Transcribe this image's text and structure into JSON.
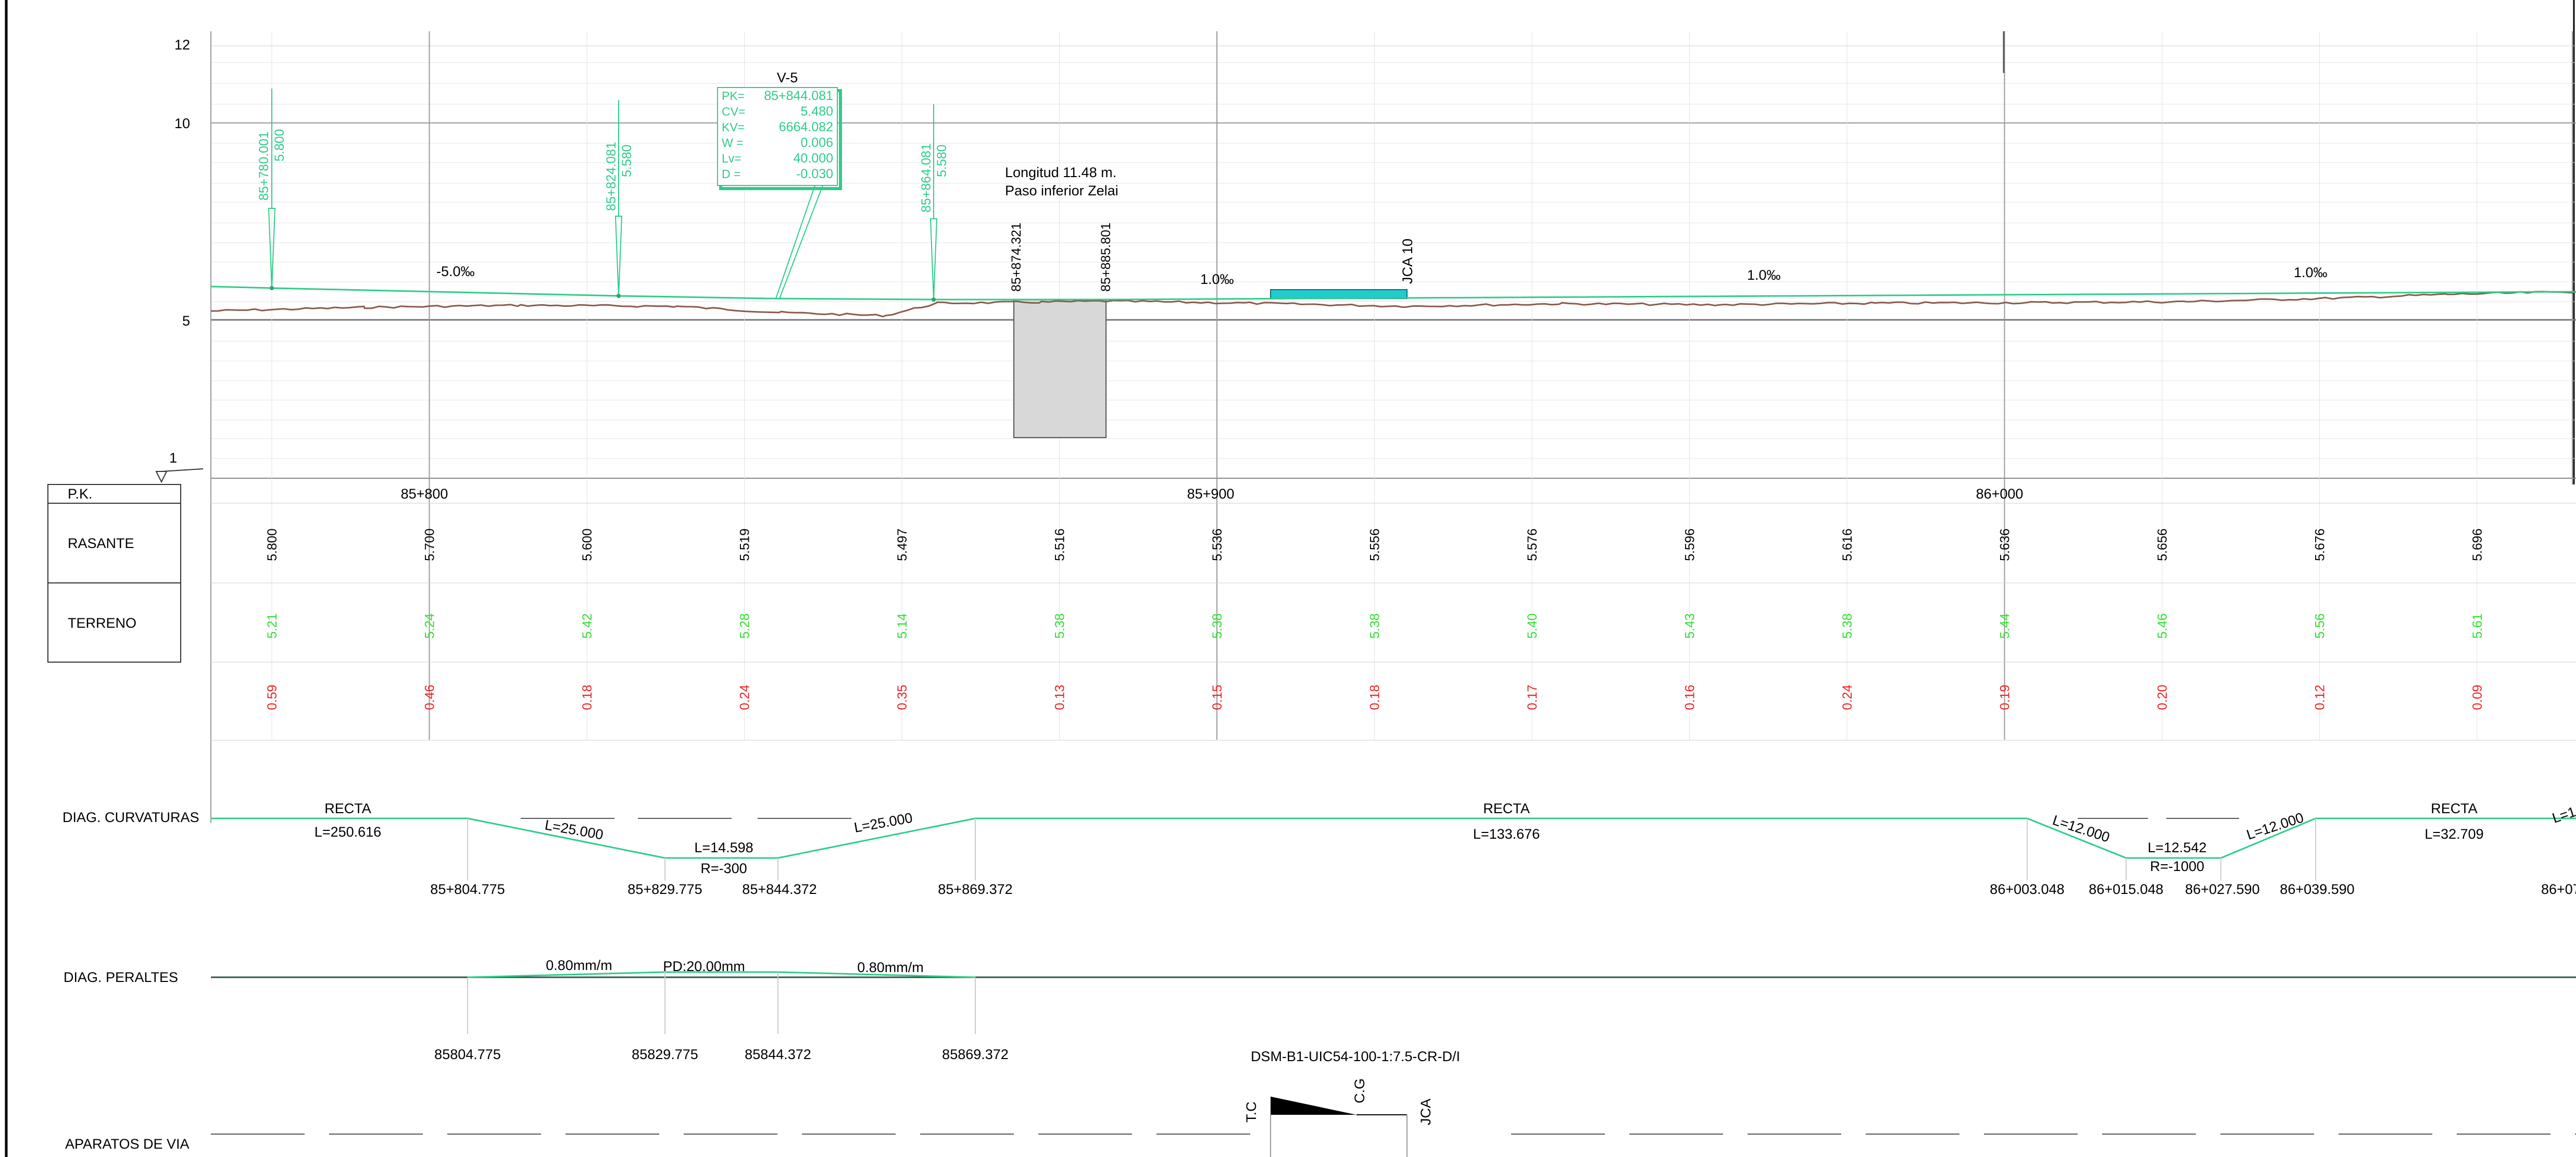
{
  "profile": {
    "y_axis_labels": [
      "12",
      "10",
      "5",
      "1"
    ],
    "kv_box": {
      "title": "V-5",
      "rows": [
        {
          "key": "PK=",
          "val": "85+844.081"
        },
        {
          "key": "CV=",
          "val": "5.480"
        },
        {
          "key": "KV=",
          "val": "6664.082"
        },
        {
          "key": "W =",
          "val": "0.006"
        },
        {
          "key": "Lv=",
          "val": "40.000"
        },
        {
          "key": "D =",
          "val": "-0.030"
        }
      ]
    },
    "markers": [
      {
        "pk": "85+780.001",
        "z": "5.800"
      },
      {
        "pk": "85+824.081",
        "z": "5.580"
      },
      {
        "pk": "85+864.081",
        "z": "5.580"
      }
    ],
    "structure": {
      "line1": "Longitud 11.48 m.",
      "line2": "Paso inferior Zelai",
      "pk_start": "85+874.321",
      "pk_end": "85+885.801"
    },
    "jca_label": "JCA 10",
    "slopes": [
      "-5.0‰",
      "1.0‰",
      "1.0‰",
      "1.0‰"
    ],
    "colors": {
      "grade": "#2ecc8a",
      "terrain": "#8b5a4a",
      "green": "#33dd33",
      "red": "#ee2222",
      "cyan": "#22cccc",
      "structure": "#d8d8d8"
    }
  },
  "band": {
    "pk_label": "P.K.",
    "pk_ticks": [
      "85+800",
      "85+900",
      "86+000"
    ],
    "rasante_label": "RASANTE",
    "terreno_label": "TERRENO",
    "rasante": [
      "5.800",
      "5.700",
      "5.600",
      "5.519",
      "5.497",
      "5.516",
      "5.536",
      "5.556",
      "5.576",
      "5.596",
      "5.616",
      "5.636",
      "5.656",
      "5.676",
      "5.696"
    ],
    "terreno": [
      "5.21",
      "5.24",
      "5.42",
      "5.28",
      "5.14",
      "5.38",
      "5.38",
      "5.38",
      "5.40",
      "5.43",
      "5.38",
      "5.44",
      "5.46",
      "5.56",
      "5.61"
    ],
    "diff": [
      "0.59",
      "0.46",
      "0.18",
      "0.24",
      "0.35",
      "0.13",
      "0.15",
      "0.18",
      "0.17",
      "0.16",
      "0.24",
      "0.19",
      "0.20",
      "0.12",
      "0.09"
    ]
  },
  "curvature": {
    "label": "DIAG. CURVATURAS",
    "recta1": "RECTA",
    "recta1_L": "L=250.616",
    "clot1": "L=25.000",
    "arc1_L": "L=14.598",
    "arc1_R": "R=-300",
    "clot2": "L=25.000",
    "recta2": "RECTA",
    "recta2_L": "L=133.676",
    "clot3": "L=12.000",
    "arc2_L": "L=12.542",
    "arc2_R": "R=-1000",
    "clot4": "L=12.000",
    "recta3": "RECTA",
    "recta3_L": "L=32.709",
    "clot5": "L=1",
    "pks": [
      "85+804.775",
      "85+829.775",
      "85+844.372",
      "85+869.372",
      "86+003.048",
      "86+015.048",
      "86+027.590",
      "86+039.590",
      "86+07"
    ]
  },
  "cant": {
    "label": "DIAG. PERALTES",
    "t1": "0.80mm/m",
    "t2": "PD:20.00mm",
    "t3": "0.80mm/m",
    "pks": [
      "85804.775",
      "85829.775",
      "85844.372",
      "85869.372"
    ]
  },
  "track": {
    "label": "APARATOS DE VIA",
    "switch_code": "DSM-B1-UIC54-100-1:7.5-CR-D/I",
    "tc": "T.C",
    "cg": "C.G",
    "jca": "JCA"
  }
}
